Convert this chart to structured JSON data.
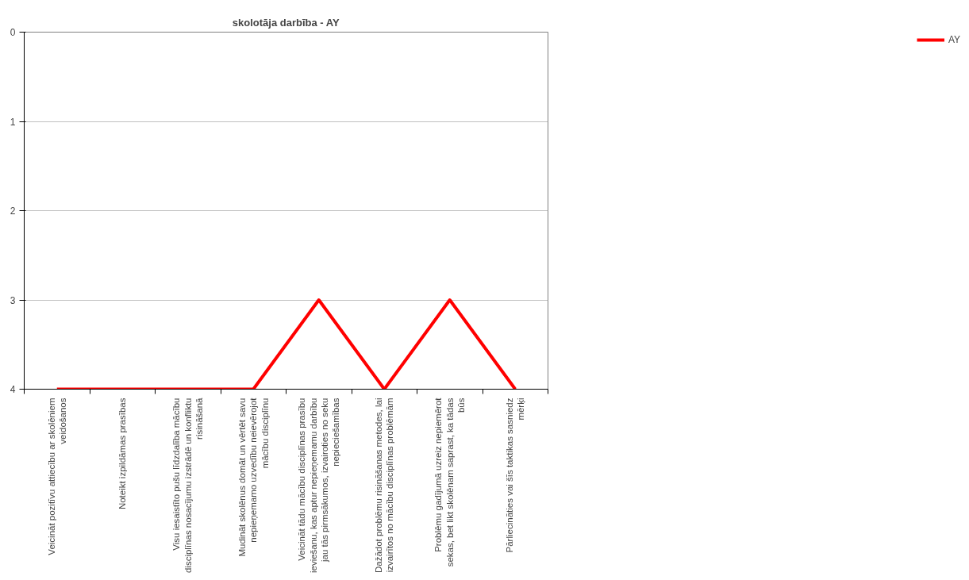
{
  "chart_data": {
    "type": "line",
    "title": "skolotāja darbība - AY",
    "categories": [
      "Veicināt pozitīvu attiecību ar skolēniem\nveidošanos",
      "Noteikt izpildāmas prasības",
      "Visu iesaistīto pušu līdzdalība mācību\ndisciplīnas nosacījumu izstrādē un konfliktu\nrisināšanā",
      "Mudināt skolēnus domāt un vērtēt savu\nnepieņemamo uzvedību neievērojot\nmācību disciplīnu",
      "Veicināt tādu mācību disciplīnas prasību\nieviešanu, kas aptur nepieņemamu darbību\njau tās pirmsākumos, izvairoties no seku\nnepieciešamības",
      "Dažādot problēmu risināšanas metodes, lai\nizvairītos no mācību disciplīnas problēmām",
      "Problēmu gadījumā uzreiz nepiemērot\nsekas, bet likt skolēnam saprast, ka tādas\nbūs",
      "Pārliecināties vai šīs taktikas sasniedz\nmērķi"
    ],
    "series": [
      {
        "name": "AY",
        "color": "#ff0000",
        "values": [
          4,
          4,
          4,
          4,
          3,
          4,
          3,
          4
        ]
      }
    ],
    "ylim": [
      4,
      0
    ],
    "yticks": [
      0,
      1,
      2,
      3,
      4
    ],
    "grid": "y",
    "legend": "right",
    "marker": "none",
    "line_style": "solid"
  }
}
